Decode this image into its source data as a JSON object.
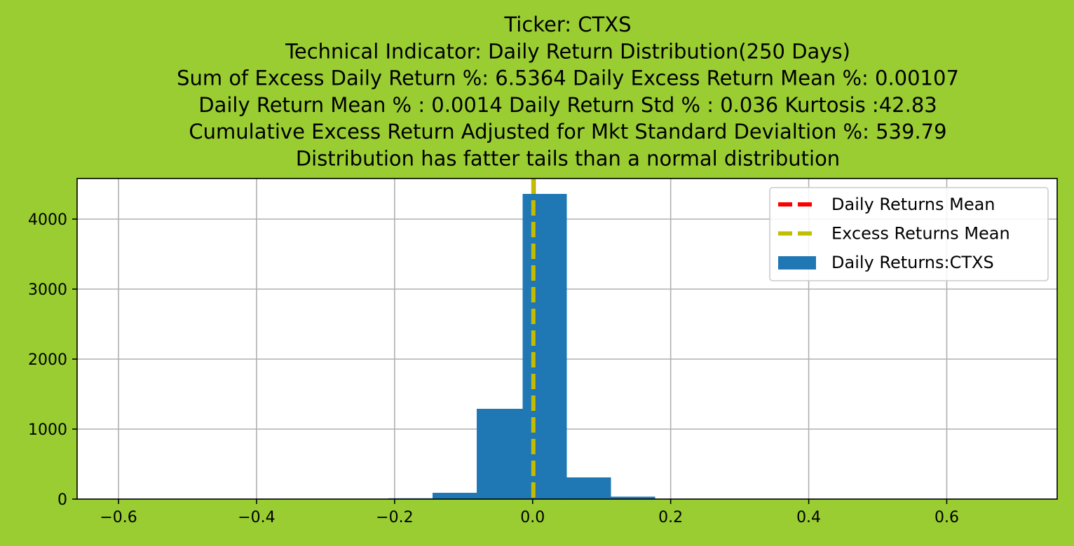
{
  "chart_data": {
    "type": "bar",
    "title_lines": [
      "Ticker: CTXS",
      "Technical Indicator: Daily Return Distribution(250 Days)",
      "    Sum of Excess Daily Return %: 6.5364   Daily Excess Return Mean %: 0.00107",
      "   Daily Return Mean % : 0.0014    Daily Return Std % : 0.036  Kurtosis :42.83",
      "Cumulative Excess Return Adjusted for Mkt Standard Devialtion %: 539.79",
      "Distribution has fatter tails than a normal distribution"
    ],
    "xlim": [
      -0.66,
      0.76
    ],
    "ylim": [
      0,
      4580
    ],
    "x_ticks": [
      -0.6,
      -0.4,
      -0.2,
      0.0,
      0.2,
      0.4,
      0.6
    ],
    "x_tick_labels": [
      "−0.6",
      "−0.4",
      "−0.2",
      "0.0",
      "0.2",
      "0.4",
      "0.6"
    ],
    "y_ticks": [
      0,
      1000,
      2000,
      3000,
      4000
    ],
    "y_tick_labels": [
      "0",
      "1000",
      "2000",
      "3000",
      "4000"
    ],
    "grid": true,
    "legend_position": "top-right",
    "series": [
      {
        "name": "Daily Returns:CTXS",
        "kind": "histogram",
        "color": "#1f77b4",
        "bins": [
          {
            "x0": -0.209,
            "x1": -0.145,
            "count": 12
          },
          {
            "x0": -0.145,
            "x1": -0.081,
            "count": 90
          },
          {
            "x0": -0.081,
            "x1": -0.0145,
            "count": 1290
          },
          {
            "x0": -0.0145,
            "x1": 0.0495,
            "count": 4360
          },
          {
            "x0": 0.0495,
            "x1": 0.1135,
            "count": 310
          },
          {
            "x0": 0.1135,
            "x1": 0.1775,
            "count": 35
          }
        ]
      },
      {
        "name": "Daily Returns Mean",
        "kind": "vline",
        "x": 0.0014,
        "color": "#ff0000",
        "style": "dashed"
      },
      {
        "name": "Excess Returns Mean",
        "kind": "vline",
        "x": 0.00107,
        "color": "#bfbf00",
        "style": "dashed"
      }
    ]
  }
}
